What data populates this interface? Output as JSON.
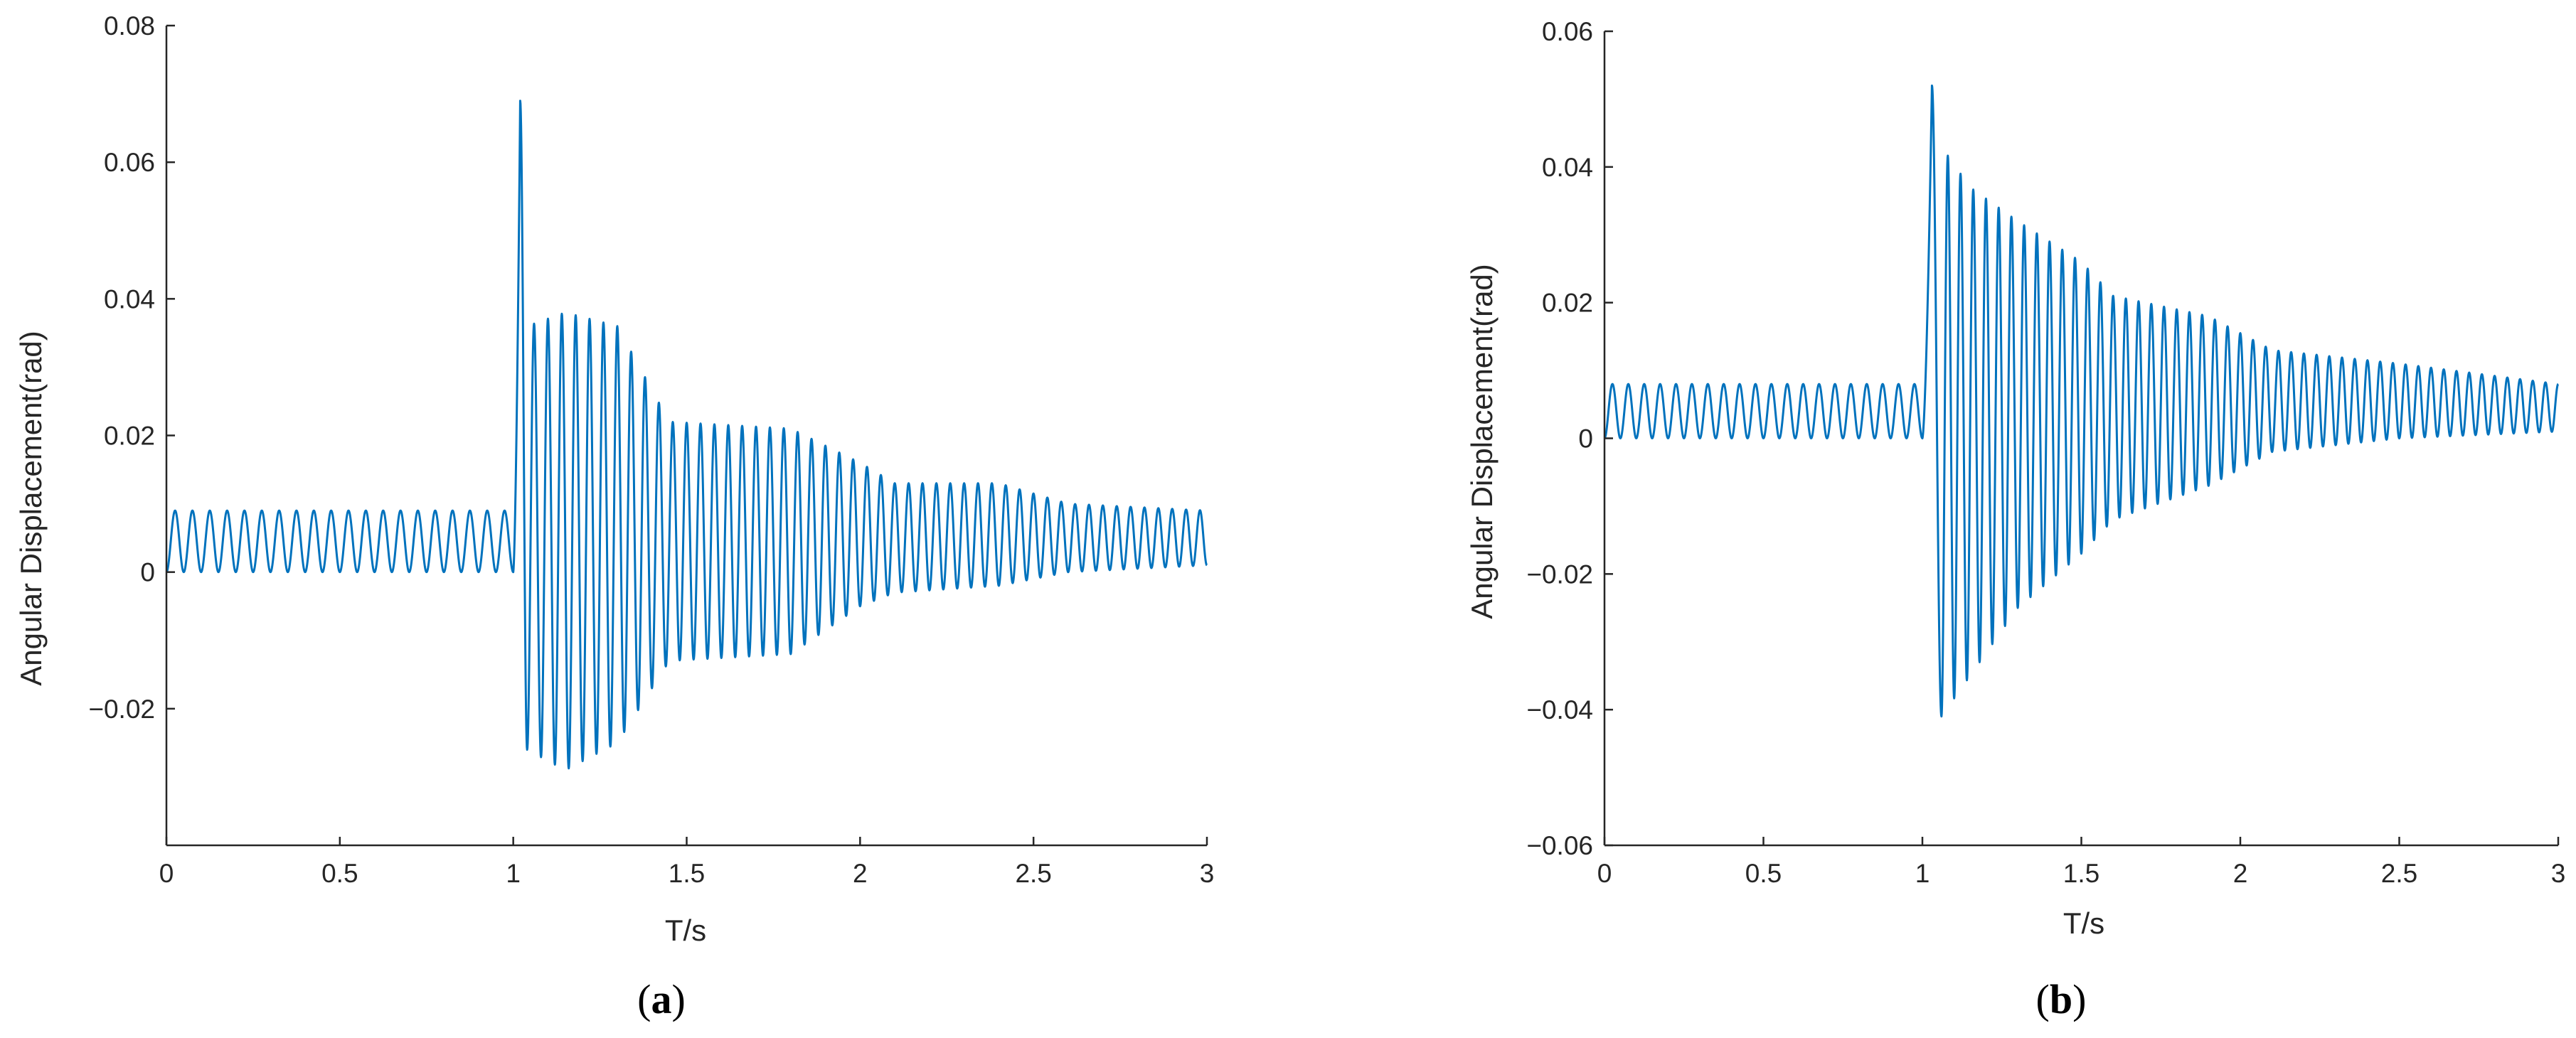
{
  "figure": {
    "captions": [
      "(a)",
      "(b)"
    ],
    "caption_parts": [
      {
        "open": "(",
        "letter": "a",
        "close": ")"
      },
      {
        "open": "(",
        "letter": "b",
        "close": ")"
      }
    ]
  },
  "chart_data": [
    {
      "type": "line",
      "panel": "a",
      "title": "",
      "xlabel": "T/s",
      "ylabel": "Angular Displacement(rad)",
      "xlim": [
        0,
        3
      ],
      "ylim": [
        -0.04,
        0.08
      ],
      "xticks": [
        0,
        0.5,
        1,
        1.5,
        2,
        2.5,
        3
      ],
      "xtick_labels": [
        "0",
        "0.5",
        "1",
        "1.5",
        "2",
        "2.5",
        "3"
      ],
      "yticks": [
        -0.02,
        0,
        0.02,
        0.04,
        0.06,
        0.08
      ],
      "ytick_labels": [
        "−0.02",
        "0",
        "0.02",
        "0.04",
        "0.06",
        "0.08"
      ],
      "grid": false,
      "line_color": "#0072BD",
      "signal": {
        "samples_per_second": 1200,
        "pre_impact": {
          "t_end": 1.0,
          "frequency_hz": 20,
          "center": 0.0045,
          "amplitude": 0.0045
        },
        "impact": {
          "t_start": 1.0,
          "t_peak": 1.02,
          "peak": 0.069,
          "t_first_trough": 1.04,
          "first_trough": -0.026
        },
        "oscillation": {
          "frequency_hz": 25
        },
        "envelope": [
          {
            "t": 1.04,
            "max": 0.036,
            "min": -0.026
          },
          {
            "t": 1.15,
            "max": 0.038,
            "min": -0.029
          },
          {
            "t": 1.3,
            "max": 0.036,
            "min": -0.025
          },
          {
            "t": 1.45,
            "max": 0.022,
            "min": -0.013
          },
          {
            "t": 1.8,
            "max": 0.021,
            "min": -0.012
          },
          {
            "t": 2.0,
            "max": 0.016,
            "min": -0.005
          },
          {
            "t": 2.1,
            "max": 0.013,
            "min": -0.003
          },
          {
            "t": 2.4,
            "max": 0.013,
            "min": -0.002
          },
          {
            "t": 2.6,
            "max": 0.01,
            "min": 0.0
          },
          {
            "t": 3.0,
            "max": 0.009,
            "min": 0.001
          }
        ]
      }
    },
    {
      "type": "line",
      "panel": "b",
      "title": "",
      "xlabel": "T/s",
      "ylabel": "Angular Displacement(rad)",
      "xlim": [
        0,
        3
      ],
      "ylim": [
        -0.06,
        0.06
      ],
      "xticks": [
        0,
        0.5,
        1,
        1.5,
        2,
        2.5,
        3
      ],
      "xtick_labels": [
        "0",
        "0.5",
        "1",
        "1.5",
        "2",
        "2.5",
        "3"
      ],
      "yticks": [
        -0.06,
        -0.04,
        -0.02,
        0,
        0.02,
        0.04,
        0.06
      ],
      "ytick_labels": [
        "−0.06",
        "−0.04",
        "−0.02",
        "0",
        "0.02",
        "0.04",
        "0.06"
      ],
      "grid": false,
      "line_color": "#0072BD",
      "signal": {
        "samples_per_second": 1200,
        "pre_impact": {
          "t_end": 1.0,
          "frequency_hz": 20,
          "center": 0.004,
          "amplitude": 0.004
        },
        "impact": {
          "t_start": 1.0,
          "t_peak": 1.03,
          "peak": 0.052,
          "t_first_trough": 1.06,
          "first_trough": -0.041
        },
        "oscillation": {
          "frequency_hz": 25
        },
        "envelope": [
          {
            "t": 1.06,
            "max": 0.043,
            "min": -0.041
          },
          {
            "t": 1.15,
            "max": 0.037,
            "min": -0.035
          },
          {
            "t": 1.3,
            "max": 0.032,
            "min": -0.025
          },
          {
            "t": 1.5,
            "max": 0.026,
            "min": -0.017
          },
          {
            "t": 1.6,
            "max": 0.021,
            "min": -0.012
          },
          {
            "t": 1.9,
            "max": 0.018,
            "min": -0.007
          },
          {
            "t": 2.1,
            "max": 0.013,
            "min": -0.002
          },
          {
            "t": 2.5,
            "max": 0.011,
            "min": 0.0
          },
          {
            "t": 3.0,
            "max": 0.008,
            "min": 0.001
          }
        ]
      }
    }
  ]
}
